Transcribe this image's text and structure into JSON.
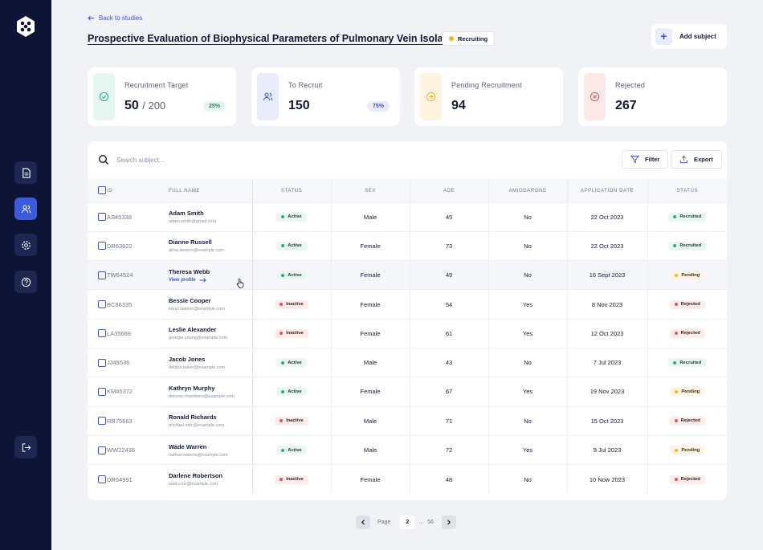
{
  "nav": {
    "back_label": "Back to studies"
  },
  "study": {
    "title": "Prospective Evaluation of Biophysical Parameters of Pulmonary Vein Isolation",
    "status": "Recruiting",
    "status_color": "#f5b324"
  },
  "actions": {
    "add_subject_label": "Add subject",
    "filter_label": "Filter",
    "export_label": "Export"
  },
  "stats": [
    {
      "label": "Recruitment Target",
      "value": "50",
      "sub": "/ 200",
      "pct": "25%",
      "icon": "check-circle-icon",
      "color": "#22b07d",
      "bg": "#e6f6f0"
    },
    {
      "label": "To Recruit",
      "value": "150",
      "sub": "",
      "pct": "75%",
      "icon": "users-icon",
      "color": "#3a55d6",
      "bg": "#e8ecfb"
    },
    {
      "label": "Pending Recruitment",
      "value": "94",
      "sub": "",
      "pct": "",
      "icon": "arrow-circle-icon",
      "color": "#f5b324",
      "bg": "#fdf3df"
    },
    {
      "label": "Rejected",
      "value": "267",
      "sub": "",
      "pct": "",
      "icon": "x-circle-icon",
      "color": "#e25555",
      "bg": "#fce8e8"
    }
  ],
  "search": {
    "placeholder": "Search subject..."
  },
  "table": {
    "columns": [
      "ID",
      "FULL NAME",
      "STATUS",
      "SEX",
      "AGE",
      "AMIODARONE",
      "APPLICATION DATE",
      "STATUS"
    ],
    "view_profile_label": "View profile",
    "rows": [
      {
        "id": "AS45338",
        "name": "Adam Smith",
        "email": "adam.smith@gmail.com",
        "status": "Active",
        "sex": "Male",
        "age": "45",
        "amiodarone": "No",
        "date": "22 Oct 2023",
        "result": "Recruited"
      },
      {
        "id": "DR63822",
        "name": "Dianne Russell",
        "email": "alma.lawson@example.com",
        "status": "Active",
        "sex": "Female",
        "age": "73",
        "amiodarone": "No",
        "date": "22 Oct 2023",
        "result": "Recruited"
      },
      {
        "id": "TW64524",
        "name": "Theresa Webb",
        "email": "",
        "status": "Active",
        "sex": "Female",
        "age": "49",
        "amiodarone": "No",
        "date": "16 Sept 2023",
        "result": "Pending",
        "hover": true
      },
      {
        "id": "BC86335",
        "name": "Bessie Cooper",
        "email": "kenzi.lawson@example.com",
        "status": "Inactive",
        "sex": "Female",
        "age": "54",
        "amiodarone": "Yes",
        "date": "8 Nov 2023",
        "result": "Rejected"
      },
      {
        "id": "LA35668",
        "name": "Leslie Alexander",
        "email": "georgia.young@example.com",
        "status": "Inactive",
        "sex": "Female",
        "age": "61",
        "amiodarone": "Yes",
        "date": "12 Oct 2023",
        "result": "Rejected"
      },
      {
        "id": "JJ45536",
        "name": "Jacob Jones",
        "email": "debbie.baker@example.com",
        "status": "Active",
        "sex": "Male",
        "age": "43",
        "amiodarone": "No",
        "date": "7 Jul 2023",
        "result": "Recruited"
      },
      {
        "id": "KM45372",
        "name": "Kathryn Murphy",
        "email": "dolores.chambers@example.com",
        "status": "Active",
        "sex": "Female",
        "age": "67",
        "amiodarone": "Yes",
        "date": "19 Nov 2023",
        "result": "Pending"
      },
      {
        "id": "RR75663",
        "name": "Ronald Richards",
        "email": "michael.mitc@example.com",
        "status": "Inactive",
        "sex": "Male",
        "age": "71",
        "amiodarone": "No",
        "date": "15 Oct 2023",
        "result": "Rejected"
      },
      {
        "id": "WW22436",
        "name": "Wade Warren",
        "email": "nathan.roberts@example.com",
        "status": "Active",
        "sex": "Male",
        "age": "72",
        "amiodarone": "Yes",
        "date": "9 Jul 2023",
        "result": "Pending"
      },
      {
        "id": "DR64991",
        "name": "Darlene Robertson",
        "email": "sara.cruz@example.com",
        "status": "Inactive",
        "sex": "Female",
        "age": "48",
        "amiodarone": "No",
        "date": "10 Now 2023",
        "result": "Rejected"
      }
    ]
  },
  "pagination": {
    "label": "Page",
    "current": "2",
    "ellipsis": "...",
    "last": "56"
  },
  "colors": {
    "active": "#22b07d",
    "inactive": "#e25555",
    "recruited": "#22b07d",
    "pending": "#f5b324",
    "rejected": "#e25555"
  }
}
